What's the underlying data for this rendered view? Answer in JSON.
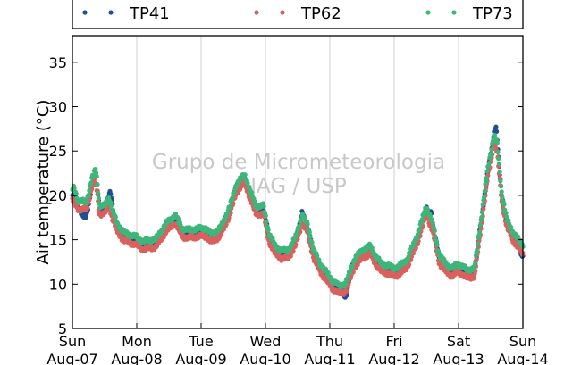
{
  "chart_data": {
    "type": "scatter",
    "ylabel": "Air temperature (°C)",
    "ylim": [
      5,
      38
    ],
    "yticks": [
      5,
      10,
      15,
      20,
      25,
      30,
      35
    ],
    "xlim_days": [
      0,
      7
    ],
    "xticks": [
      {
        "day": "Sun",
        "date": "Aug-07"
      },
      {
        "day": "Mon",
        "date": "Aug-08"
      },
      {
        "day": "Tue",
        "date": "Aug-09"
      },
      {
        "day": "Wed",
        "date": "Aug-10"
      },
      {
        "day": "Thu",
        "date": "Aug-11"
      },
      {
        "day": "Fri",
        "date": "Aug-12"
      },
      {
        "day": "Sat",
        "date": "Aug-13"
      },
      {
        "day": "Sun",
        "date": "Aug-14"
      }
    ],
    "grid": "vertical",
    "legend_position": "top",
    "watermark": [
      "Grupo de Micrometeorologia",
      "IAG / USP"
    ],
    "x_unit": "days since Aug-07 00:00",
    "base_curve": [
      [
        0.0,
        20.0
      ],
      [
        0.1,
        19.0
      ],
      [
        0.22,
        19.0
      ],
      [
        0.3,
        21.5
      ],
      [
        0.36,
        22.5
      ],
      [
        0.42,
        18.5
      ],
      [
        0.5,
        18.5
      ],
      [
        0.57,
        19.5
      ],
      [
        0.62,
        18.0
      ],
      [
        0.7,
        16.5
      ],
      [
        0.8,
        15.5
      ],
      [
        1.0,
        15.0
      ],
      [
        1.1,
        14.5
      ],
      [
        1.3,
        14.8
      ],
      [
        1.45,
        16.5
      ],
      [
        1.6,
        17.5
      ],
      [
        1.7,
        16.0
      ],
      [
        1.8,
        15.8
      ],
      [
        2.0,
        16.0
      ],
      [
        2.08,
        16.0
      ],
      [
        2.15,
        15.3
      ],
      [
        2.3,
        16.0
      ],
      [
        2.45,
        18.5
      ],
      [
        2.55,
        21.0
      ],
      [
        2.62,
        21.6
      ],
      [
        2.68,
        22.0
      ],
      [
        2.75,
        20.5
      ],
      [
        2.85,
        18.5
      ],
      [
        2.97,
        18.5
      ],
      [
        3.05,
        15.5
      ],
      [
        3.15,
        14.0
      ],
      [
        3.25,
        13.5
      ],
      [
        3.35,
        13.5
      ],
      [
        3.47,
        15.0
      ],
      [
        3.57,
        17.5
      ],
      [
        3.65,
        16.5
      ],
      [
        3.75,
        13.5
      ],
      [
        3.85,
        12.0
      ],
      [
        3.95,
        11.0
      ],
      [
        4.0,
        10.5
      ],
      [
        4.05,
        10.0
      ],
      [
        4.15,
        9.5
      ],
      [
        4.25,
        9.8
      ],
      [
        4.38,
        12.5
      ],
      [
        4.5,
        13.5
      ],
      [
        4.63,
        14.0
      ],
      [
        4.7,
        13.0
      ],
      [
        4.8,
        12.0
      ],
      [
        4.9,
        11.8
      ],
      [
        5.0,
        11.5
      ],
      [
        5.1,
        11.8
      ],
      [
        5.2,
        12.5
      ],
      [
        5.35,
        15.0
      ],
      [
        5.5,
        18.5
      ],
      [
        5.6,
        16.5
      ],
      [
        5.7,
        13.0
      ],
      [
        5.8,
        12.0
      ],
      [
        5.9,
        11.5
      ],
      [
        6.0,
        12.0
      ],
      [
        6.13,
        11.3
      ],
      [
        6.25,
        11.5
      ],
      [
        6.35,
        17.0
      ],
      [
        6.45,
        22.5
      ],
      [
        6.55,
        26.5
      ],
      [
        6.6,
        25.5
      ],
      [
        6.67,
        20.0
      ],
      [
        6.75,
        17.0
      ],
      [
        6.85,
        15.5
      ],
      [
        6.95,
        14.5
      ],
      [
        7.0,
        14.0
      ]
    ],
    "series": [
      {
        "name": "TP41",
        "color": "#1f4f8f",
        "offset": 0.0,
        "anomalies": [
          {
            "x": 0.2,
            "w": 0.12,
            "dy": -1.5
          },
          {
            "x": 0.6,
            "w": 0.05,
            "dy": 1.5
          },
          {
            "x": 3.58,
            "w": 0.04,
            "dy": 0.8
          },
          {
            "x": 4.25,
            "w": 0.06,
            "dy": -1.2
          },
          {
            "x": 5.57,
            "w": 0.04,
            "dy": 1.2
          },
          {
            "x": 6.58,
            "w": 0.04,
            "dy": 1.8
          },
          {
            "x": 6.98,
            "w": 0.04,
            "dy": -1.2
          }
        ]
      },
      {
        "name": "TP62",
        "color": "#d9605e",
        "offset": -0.6,
        "anomalies": []
      },
      {
        "name": "TP73",
        "color": "#3fb57a",
        "offset": 0.3,
        "anomalies": [
          {
            "x": 0.03,
            "w": 0.05,
            "dy": 0.8
          },
          {
            "x": 0.38,
            "w": 0.04,
            "dy": 0.5
          }
        ]
      }
    ]
  }
}
